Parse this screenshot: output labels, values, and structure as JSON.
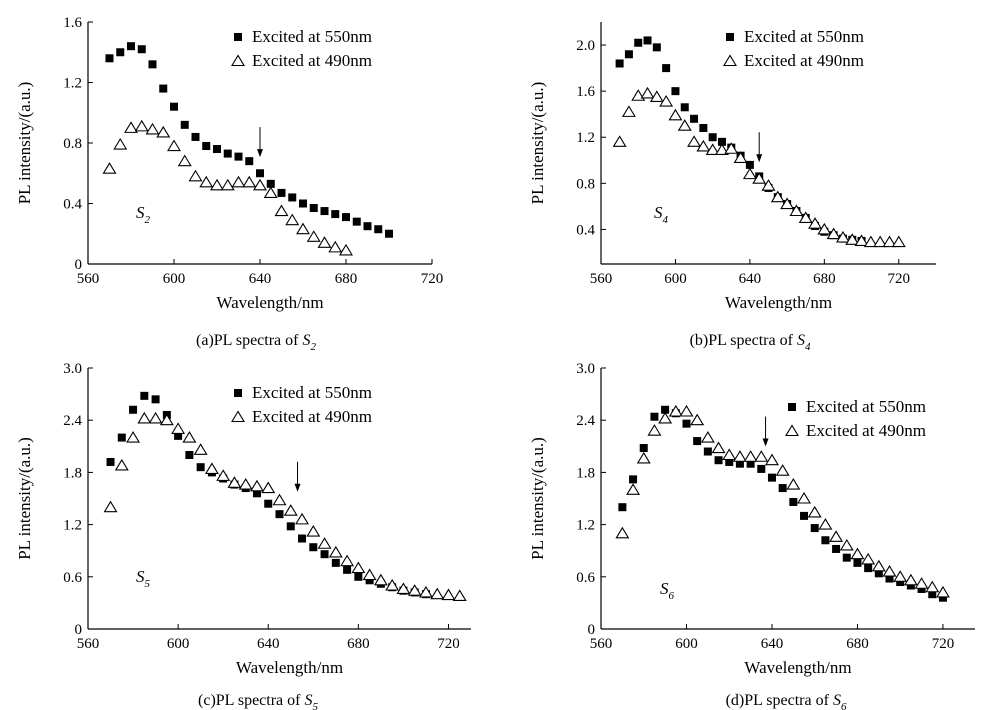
{
  "chart_data": [
    {
      "type": "scatter",
      "panel": "a",
      "caption": "(a)PL spectra of",
      "caption_sample": {
        "base": "S",
        "sub": "2"
      },
      "sample_label": {
        "base": "S",
        "sub": "2"
      },
      "xlabel": "Wavelength/nm",
      "ylabel": "PL intensity/(a.u.)",
      "xlim": [
        560,
        720
      ],
      "ylim": [
        0,
        1.6
      ],
      "xticks": [
        560,
        600,
        640,
        680,
        720
      ],
      "yticks": [
        0,
        0.4,
        0.8,
        1.2,
        1.6
      ],
      "ytick_labels": [
        "0",
        "0.4",
        "0.8",
        "1.2",
        "1.6"
      ],
      "arrow_at": [
        640,
        0.72
      ],
      "legend_position": "top-right",
      "series": [
        {
          "name": "Excited at 550nm",
          "marker": "filled-square",
          "x": [
            570,
            575,
            580,
            585,
            590,
            595,
            600,
            605,
            610,
            615,
            620,
            625,
            630,
            635,
            640,
            645,
            650,
            655,
            660,
            665,
            670,
            675,
            680,
            685,
            690,
            695,
            700
          ],
          "y": [
            1.36,
            1.4,
            1.44,
            1.42,
            1.32,
            1.16,
            1.04,
            0.92,
            0.84,
            0.78,
            0.76,
            0.73,
            0.71,
            0.68,
            0.6,
            0.53,
            0.47,
            0.44,
            0.4,
            0.37,
            0.35,
            0.33,
            0.31,
            0.28,
            0.25,
            0.23,
            0.2
          ]
        },
        {
          "name": "Excited at 490nm",
          "marker": "open-triangle",
          "x": [
            570,
            575,
            580,
            585,
            590,
            595,
            600,
            605,
            610,
            615,
            620,
            625,
            630,
            635,
            640,
            645,
            650,
            655,
            660,
            665,
            670,
            675,
            680
          ],
          "y": [
            0.63,
            0.79,
            0.9,
            0.91,
            0.89,
            0.87,
            0.78,
            0.68,
            0.58,
            0.54,
            0.52,
            0.52,
            0.54,
            0.54,
            0.52,
            0.47,
            0.35,
            0.29,
            0.23,
            0.18,
            0.14,
            0.11,
            0.09
          ]
        }
      ]
    },
    {
      "type": "scatter",
      "panel": "b",
      "caption": "(b)PL spectra of",
      "caption_sample": {
        "base": "S",
        "sub": "4"
      },
      "sample_label": {
        "base": "S",
        "sub": "4"
      },
      "xlabel": "Wavelength/nm",
      "ylabel": "PL intensity/(a.u.)",
      "xlim": [
        560,
        740
      ],
      "ylim": [
        0.1,
        2.2
      ],
      "xticks": [
        560,
        600,
        640,
        680,
        720
      ],
      "yticks": [
        0.4,
        0.8,
        1.2,
        1.6,
        2.0
      ],
      "ytick_labels": [
        "0.4",
        "0.8",
        "1.2",
        "1.6",
        "2.0"
      ],
      "arrow_at": [
        645,
        1.0
      ],
      "legend_position": "top-right",
      "series": [
        {
          "name": "Excited at 550nm",
          "marker": "filled-square",
          "x": [
            570,
            575,
            580,
            585,
            590,
            595,
            600,
            605,
            610,
            615,
            620,
            625,
            630,
            635,
            640,
            645,
            650,
            655,
            660,
            665,
            670,
            675,
            680,
            685,
            690,
            695,
            700
          ],
          "y": [
            1.84,
            1.92,
            2.02,
            2.04,
            1.98,
            1.8,
            1.6,
            1.46,
            1.36,
            1.28,
            1.2,
            1.16,
            1.11,
            1.04,
            0.96,
            0.86,
            0.76,
            0.68,
            0.62,
            0.56,
            0.5,
            0.43,
            0.38,
            0.35,
            0.32,
            0.31,
            0.3
          ]
        },
        {
          "name": "Excited at 490nm",
          "marker": "open-triangle",
          "x": [
            570,
            575,
            580,
            585,
            590,
            595,
            600,
            605,
            610,
            615,
            620,
            625,
            630,
            635,
            640,
            645,
            650,
            655,
            660,
            665,
            670,
            675,
            680,
            685,
            690,
            695,
            700,
            705,
            710,
            715,
            720
          ],
          "y": [
            1.16,
            1.42,
            1.56,
            1.58,
            1.55,
            1.51,
            1.39,
            1.3,
            1.16,
            1.12,
            1.09,
            1.09,
            1.1,
            1.02,
            0.88,
            0.84,
            0.78,
            0.68,
            0.62,
            0.56,
            0.5,
            0.45,
            0.4,
            0.36,
            0.33,
            0.31,
            0.3,
            0.29,
            0.29,
            0.29,
            0.29
          ]
        }
      ]
    },
    {
      "type": "scatter",
      "panel": "c",
      "caption": "(c)PL spectra of",
      "caption_sample": {
        "base": "S",
        "sub": "5"
      },
      "sample_label": {
        "base": "S",
        "sub": "5"
      },
      "xlabel": "Wavelength/nm",
      "ylabel": "PL intensity/(a.u.)",
      "xlim": [
        560,
        730
      ],
      "ylim": [
        0,
        3.0
      ],
      "xticks": [
        560,
        600,
        640,
        680,
        720
      ],
      "yticks": [
        0,
        0.6,
        1.2,
        1.8,
        2.4,
        3.0
      ],
      "ytick_labels": [
        "0",
        "0.6",
        "1.2",
        "1.8",
        "2.4",
        "3.0"
      ],
      "arrow_at": [
        653,
        1.6
      ],
      "legend_position": "top-right",
      "series": [
        {
          "name": "Excited at 550nm",
          "marker": "filled-square",
          "x": [
            570,
            575,
            580,
            585,
            590,
            595,
            600,
            605,
            610,
            615,
            620,
            625,
            630,
            635,
            640,
            645,
            650,
            655,
            660,
            665,
            670,
            675,
            680,
            685,
            690,
            695,
            700,
            705,
            710
          ],
          "y": [
            1.92,
            2.2,
            2.52,
            2.68,
            2.64,
            2.46,
            2.22,
            2.0,
            1.86,
            1.8,
            1.73,
            1.66,
            1.62,
            1.56,
            1.44,
            1.32,
            1.18,
            1.04,
            0.94,
            0.86,
            0.76,
            0.68,
            0.6,
            0.56,
            0.52,
            0.48,
            0.44,
            0.42,
            0.4
          ]
        },
        {
          "name": "Excited at 490nm",
          "marker": "open-triangle",
          "x": [
            570,
            575,
            580,
            585,
            590,
            595,
            600,
            605,
            610,
            615,
            620,
            625,
            630,
            635,
            640,
            645,
            650,
            655,
            660,
            665,
            670,
            675,
            680,
            685,
            690,
            695,
            700,
            705,
            710,
            715,
            720,
            725
          ],
          "y": [
            1.4,
            1.88,
            2.2,
            2.42,
            2.42,
            2.4,
            2.3,
            2.2,
            2.06,
            1.84,
            1.76,
            1.68,
            1.66,
            1.64,
            1.62,
            1.48,
            1.36,
            1.26,
            1.12,
            0.98,
            0.88,
            0.78,
            0.7,
            0.62,
            0.56,
            0.5,
            0.46,
            0.44,
            0.42,
            0.4,
            0.39,
            0.38
          ]
        }
      ]
    },
    {
      "type": "scatter",
      "panel": "d",
      "caption": "(d)PL spectra of",
      "caption_sample": {
        "base": "S",
        "sub": "6"
      },
      "sample_label": {
        "base": "S",
        "sub": "6"
      },
      "xlabel": "Wavelength/nm",
      "ylabel": "PL intensity/(a.u.)",
      "xlim": [
        560,
        735
      ],
      "ylim": [
        0,
        3.0
      ],
      "xticks": [
        560,
        600,
        640,
        680,
        720
      ],
      "yticks": [
        0,
        0.6,
        1.2,
        1.8,
        2.4,
        3.0
      ],
      "ytick_labels": [
        "0",
        "0.6",
        "1.2",
        "1.8",
        "2.4",
        "3.0"
      ],
      "arrow_at": [
        637,
        2.12
      ],
      "legend_position": "top-right",
      "series": [
        {
          "name": "Excited at 550nm",
          "marker": "filled-square",
          "x": [
            570,
            575,
            580,
            585,
            590,
            595,
            600,
            605,
            610,
            615,
            620,
            625,
            630,
            635,
            640,
            645,
            650,
            655,
            660,
            665,
            670,
            675,
            680,
            685,
            690,
            695,
            700,
            705,
            710,
            715,
            720
          ],
          "y": [
            1.4,
            1.72,
            2.08,
            2.44,
            2.52,
            2.48,
            2.36,
            2.16,
            2.04,
            1.94,
            1.92,
            1.9,
            1.9,
            1.84,
            1.74,
            1.62,
            1.46,
            1.3,
            1.16,
            1.02,
            0.92,
            0.82,
            0.76,
            0.7,
            0.64,
            0.58,
            0.54,
            0.5,
            0.46,
            0.4,
            0.36
          ]
        },
        {
          "name": "Excited at 490nm",
          "marker": "open-triangle",
          "x": [
            570,
            575,
            580,
            585,
            590,
            595,
            600,
            605,
            610,
            615,
            620,
            625,
            630,
            635,
            640,
            645,
            650,
            655,
            660,
            665,
            670,
            675,
            680,
            685,
            690,
            695,
            700,
            705,
            710,
            715,
            720
          ],
          "y": [
            1.1,
            1.6,
            1.96,
            2.28,
            2.42,
            2.5,
            2.5,
            2.4,
            2.2,
            2.08,
            2.0,
            1.98,
            1.98,
            1.98,
            1.94,
            1.82,
            1.66,
            1.5,
            1.34,
            1.2,
            1.06,
            0.96,
            0.86,
            0.8,
            0.72,
            0.66,
            0.6,
            0.56,
            0.52,
            0.48,
            0.42
          ]
        }
      ]
    }
  ]
}
